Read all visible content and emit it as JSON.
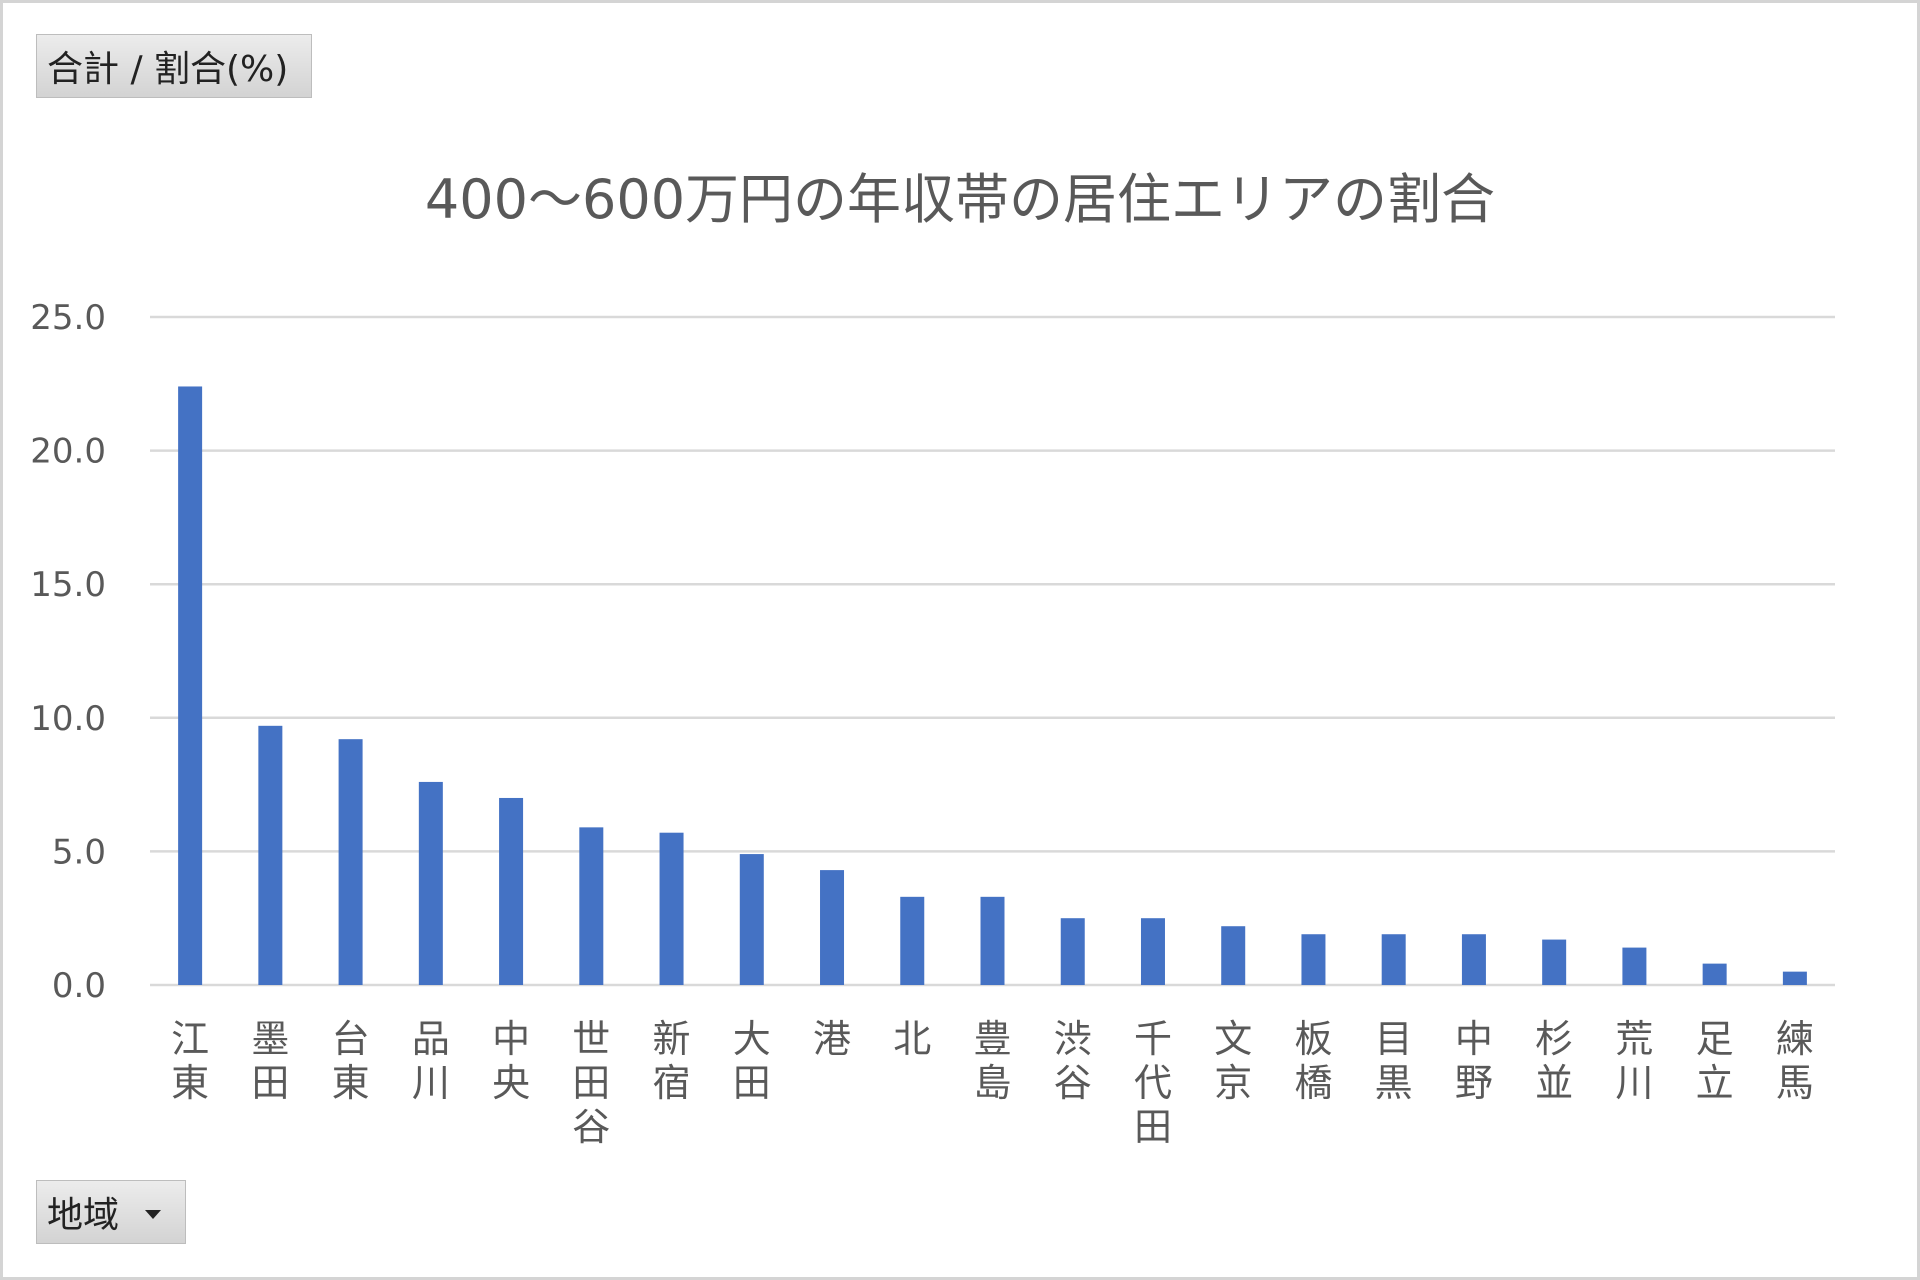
{
  "pivot": {
    "value_field_label": "合計 / 割合(%)",
    "axis_field_label": "地域"
  },
  "chart_data": {
    "type": "bar",
    "title": "400～600万円の年収帯の居住エリアの割合",
    "xlabel": "",
    "ylabel": "",
    "ylim": [
      0,
      25
    ],
    "yticks": [
      "0.0",
      "5.0",
      "10.0",
      "15.0",
      "20.0",
      "25.0"
    ],
    "grid": true,
    "legend": "none",
    "bar_color": "#4472C4",
    "categories": [
      "江東",
      "墨田",
      "台東",
      "品川",
      "中央",
      "世田谷",
      "新宿",
      "大田",
      "港",
      "北",
      "豊島",
      "渋谷",
      "千代田",
      "文京",
      "板橋",
      "目黒",
      "中野",
      "杉並",
      "荒川",
      "足立",
      "練馬"
    ],
    "values": [
      22.4,
      9.7,
      9.2,
      7.6,
      7.0,
      5.9,
      5.7,
      4.9,
      4.3,
      3.3,
      3.3,
      2.5,
      2.5,
      2.2,
      1.9,
      1.9,
      1.9,
      1.7,
      1.4,
      0.8,
      0.5
    ]
  }
}
